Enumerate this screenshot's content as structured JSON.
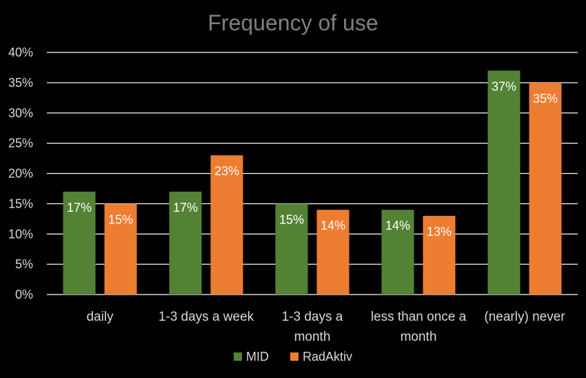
{
  "chart_data": {
    "type": "bar",
    "title": "Frequency of use",
    "xlabel": "",
    "ylabel": "",
    "ylim": [
      0,
      40
    ],
    "yticks": [
      0,
      5,
      10,
      15,
      20,
      25,
      30,
      35,
      40
    ],
    "ytick_labels": [
      "0%",
      "5%",
      "10%",
      "15%",
      "20%",
      "25%",
      "30%",
      "35%",
      "40%"
    ],
    "categories": [
      "daily",
      "1-3 days a week",
      "1-3 days a month",
      "less than once a month",
      "(nearly) never"
    ],
    "category_label_lines": [
      [
        "daily"
      ],
      [
        "1-3 days a week"
      ],
      [
        "1-3 days a",
        "month"
      ],
      [
        "less than once a",
        "month"
      ],
      [
        "(nearly) never"
      ]
    ],
    "series": [
      {
        "name": "MID",
        "color": "#548235",
        "values": [
          17,
          17,
          15,
          14,
          37
        ],
        "labels": [
          "17%",
          "17%",
          "15%",
          "14%",
          "37%"
        ]
      },
      {
        "name": "RadAktiv",
        "color": "#ed7d31",
        "values": [
          15,
          23,
          14,
          13,
          35
        ],
        "labels": [
          "15%",
          "23%",
          "14%",
          "13%",
          "35%"
        ]
      }
    ],
    "grid": true,
    "legend_position": "bottom",
    "background": "#000000"
  }
}
